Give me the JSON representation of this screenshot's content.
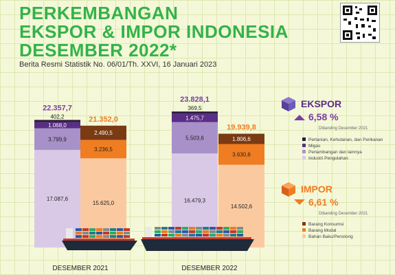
{
  "header": {
    "title_lines": [
      "PERKEMBANGAN",
      "EKSPOR & IMPOR INDONESIA",
      "DESEMBER 2022*"
    ],
    "subtitle": "Berita Resmi Statistik No. 06/01/Th. XXVI, 16 Januari 2023"
  },
  "ekspor": {
    "label": "EKSPOR",
    "change": "6,58 %",
    "direction": "up",
    "compare": "Dibanding Desember 2021",
    "legend": [
      {
        "name": "Pertanian, Kehutanan, dan Perikanan",
        "color": "#2b1a3b"
      },
      {
        "name": "Migas",
        "color": "#5a2d86"
      },
      {
        "name": "Pertambangan dan lainnya",
        "color": "#a891c9"
      },
      {
        "name": "Industri Pengolahan",
        "color": "#d9c9e6"
      }
    ]
  },
  "impor": {
    "label": "IMPOR",
    "change": "6,61 %",
    "direction": "down",
    "compare": "Dibanding Desember 2021",
    "legend": [
      {
        "name": "Barang Konsumsi",
        "color": "#7a3a12"
      },
      {
        "name": "Barang Modal",
        "color": "#f07d22"
      },
      {
        "name": "Bahan Baku/Penolong",
        "color": "#fbc9a0"
      }
    ]
  },
  "chart_data": {
    "type": "bar",
    "stacked": true,
    "categories": [
      "DESEMBER 2021",
      "DESEMBER 2022"
    ],
    "ekspor_totals": [
      "22.357,7",
      "23.828,1"
    ],
    "impor_totals": [
      "21.352,0",
      "19.939,8"
    ],
    "ekspor_series": [
      {
        "name": "Industri Pengolahan",
        "values": [
          17087.6,
          16479.3
        ],
        "labels": [
          "17.087,6",
          "16.479,3"
        ],
        "color": "#d9c9e6"
      },
      {
        "name": "Pertambangan dan lainnya",
        "values": [
          3799.9,
          5503.6
        ],
        "labels": [
          "3.799,9",
          "5.503,6"
        ],
        "color": "#a891c9"
      },
      {
        "name": "Migas",
        "values": [
          1068.0,
          1475.7
        ],
        "labels": [
          "1.068,0",
          "1.475,7"
        ],
        "color": "#5a2d86"
      },
      {
        "name": "Pertanian, Kehutanan, dan Perikanan",
        "values": [
          402.2,
          369.5
        ],
        "labels": [
          "402,2",
          "369,5"
        ],
        "color": "#2b1a3b"
      }
    ],
    "impor_series": [
      {
        "name": "Bahan Baku/Penolong",
        "values": [
          15625.0,
          14502.6
        ],
        "labels": [
          "15.625,0",
          "14.502,6"
        ],
        "color": "#fbc9a0"
      },
      {
        "name": "Barang Modal",
        "values": [
          3236.5,
          3630.6
        ],
        "labels": [
          "3.236,5",
          "3.630,6"
        ],
        "color": "#f07d22"
      },
      {
        "name": "Barang Konsumsi",
        "values": [
          2490.5,
          1806.6
        ],
        "labels": [
          "2.490,5",
          "1.806,6"
        ],
        "color": "#7a3a12"
      }
    ],
    "colors": {
      "ekspor_total": "#7a3fa0",
      "impor_total": "#f07d22",
      "title": "#34b24a"
    }
  }
}
